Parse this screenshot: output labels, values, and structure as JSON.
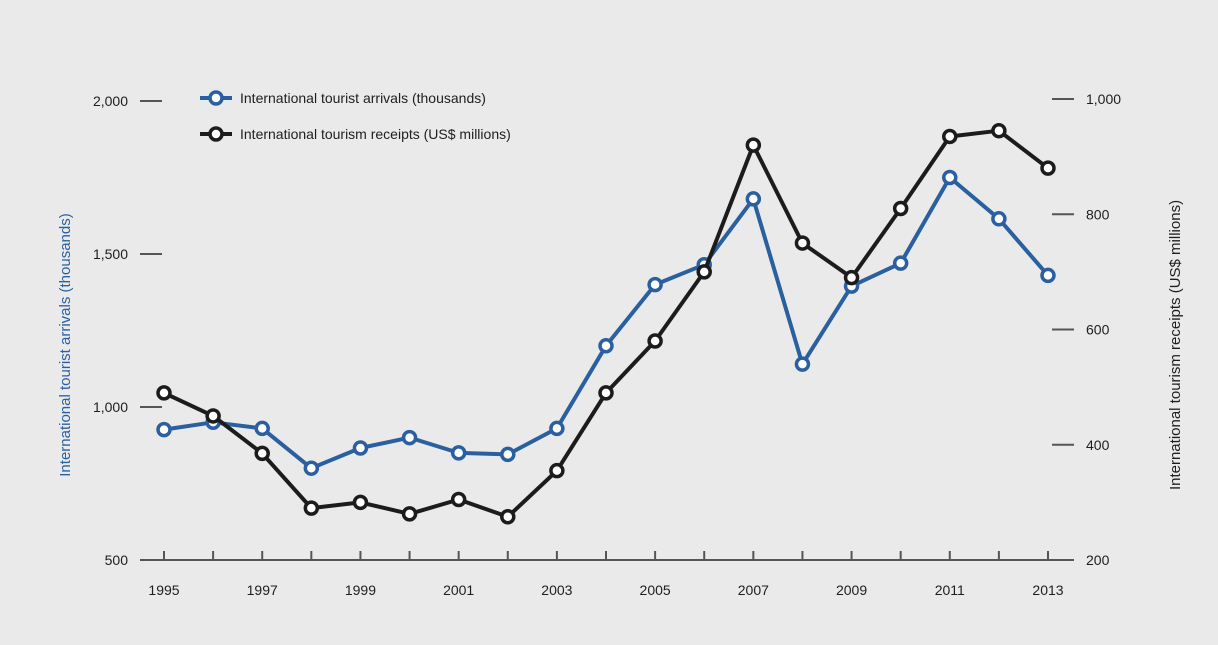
{
  "colors": {
    "background": "#ebeaeb",
    "arrivals": "#2a5fa0",
    "receipts": "#1c1c1c",
    "axis": "#555555",
    "left_title": "#2a5fa0",
    "right_title": "#1e1e1e"
  },
  "chart_data": {
    "type": "line",
    "title": "",
    "x": [
      1995,
      1996,
      1997,
      1998,
      1999,
      2000,
      2001,
      2002,
      2003,
      2004,
      2005,
      2006,
      2007,
      2008,
      2009,
      2010,
      2011,
      2012,
      2013
    ],
    "x_tick_labels": [
      "1995",
      "1997",
      "1999",
      "2001",
      "2003",
      "2005",
      "2007",
      "2009",
      "2011",
      "2013"
    ],
    "series": [
      {
        "name": "International tourist arrivals (thousands)",
        "axis": "left",
        "color": "#2a5fa0",
        "values": [
          926,
          950,
          930,
          800,
          866,
          900,
          850,
          845,
          930,
          1200,
          1400,
          1465,
          1680,
          1140,
          1395,
          1470,
          1750,
          1615,
          1430
        ]
      },
      {
        "name": "International tourism receipts (US$ millions)",
        "axis": "right",
        "color": "#1c1c1c",
        "values": [
          490,
          450,
          385,
          290,
          300,
          280,
          305,
          275,
          355,
          490,
          580,
          700,
          920,
          750,
          690,
          810,
          935,
          945,
          880
        ]
      }
    ],
    "y_left": {
      "label": "International tourist arrivals (thousands)",
      "ticks": [
        500,
        1000,
        1500,
        2000
      ],
      "tick_labels": [
        "500",
        "1,000",
        "1,500",
        "2,000"
      ],
      "range": [
        500,
        2000
      ]
    },
    "y_right": {
      "label": "International tourism receipts (US$ millions)",
      "ticks": [
        200,
        400,
        600,
        800,
        1000
      ],
      "tick_labels": [
        "200",
        "400",
        "600",
        "800",
        "1,000"
      ],
      "range": [
        200,
        1000
      ]
    },
    "legend": {
      "placement": "top-left",
      "entries": [
        "International tourist arrivals (thousands)",
        "International tourism receipts (US$ millions)"
      ]
    },
    "grid": false
  }
}
